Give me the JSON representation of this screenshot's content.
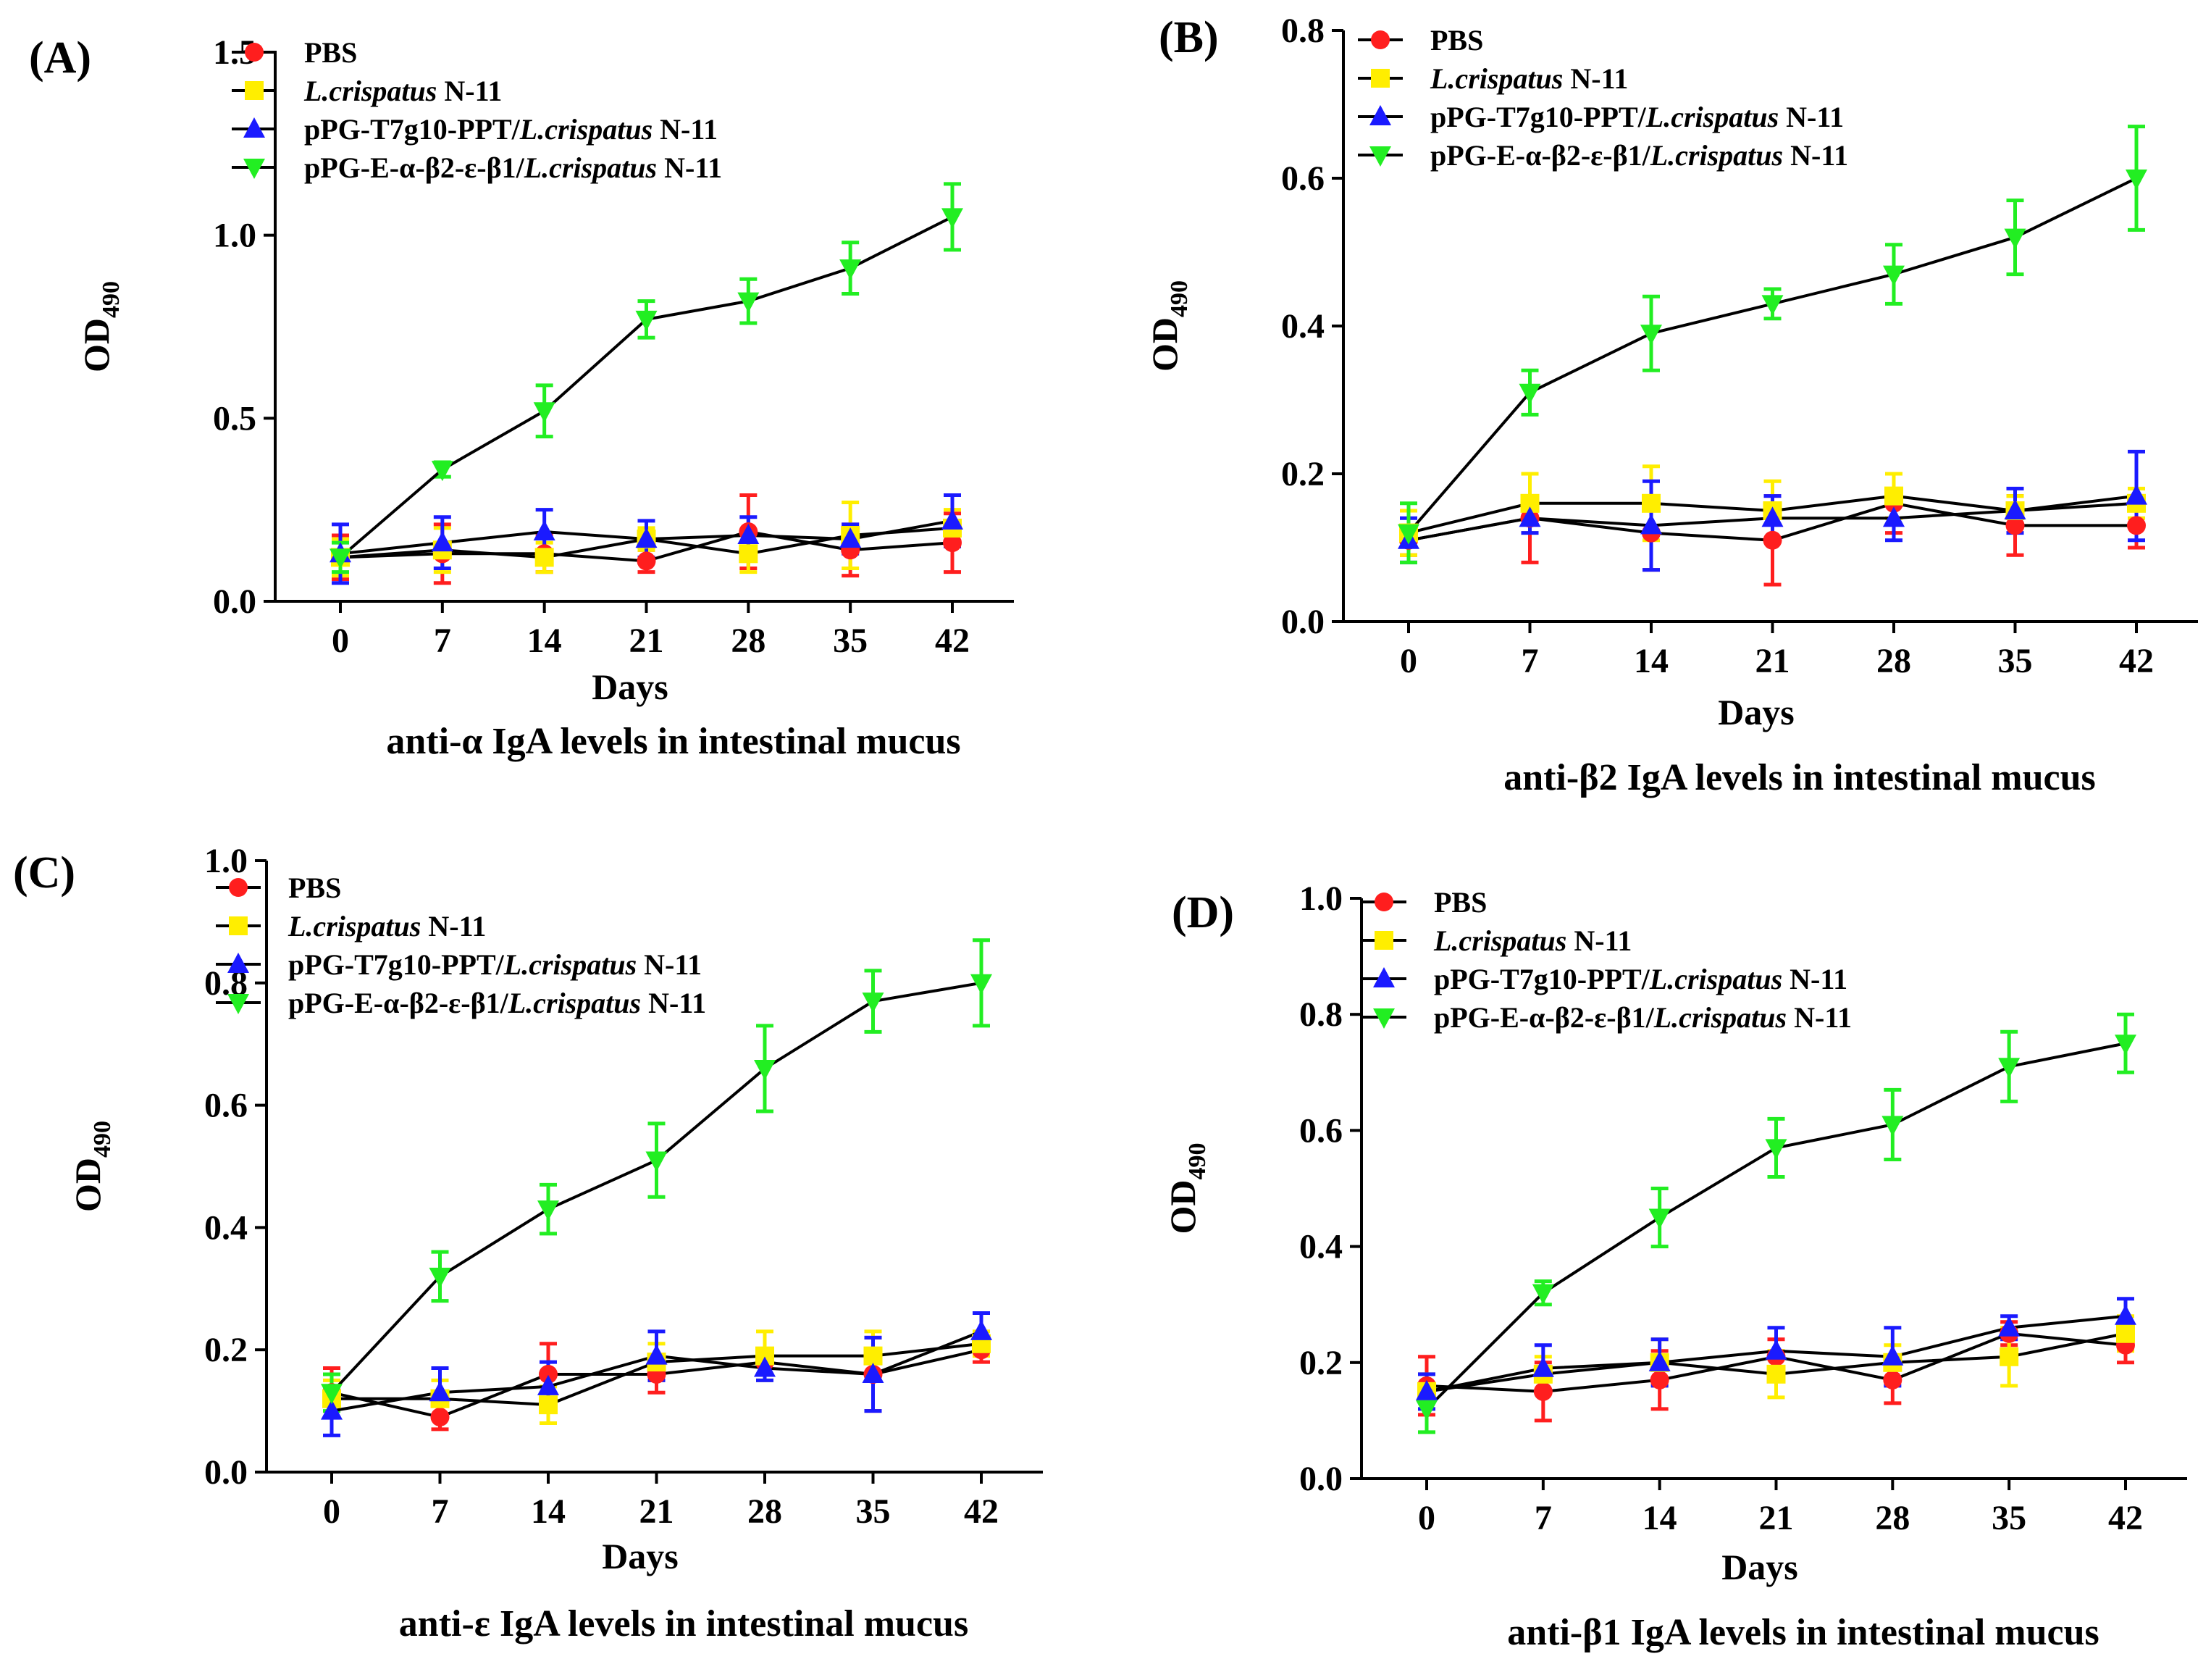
{
  "figure": {
    "series_legend": [
      {
        "key": "pbs",
        "parts": [
          {
            "text": "PBS",
            "italic": false
          }
        ]
      },
      {
        "key": "lc",
        "parts": [
          {
            "text": "L.crispatus",
            "italic": true
          },
          {
            "text": " N-11",
            "italic": false
          }
        ]
      },
      {
        "key": "t7",
        "parts": [
          {
            "text": "pPG-T7g10-PPT/",
            "italic": false
          },
          {
            "text": "L.crispatus",
            "italic": true
          },
          {
            "text": " N-11",
            "italic": false
          }
        ]
      },
      {
        "key": "eab",
        "parts": [
          {
            "text": "pPG-E-α-β2-ε-β1/",
            "italic": false
          },
          {
            "text": "L.crispatus",
            "italic": true
          },
          {
            "text": " N-11",
            "italic": false
          }
        ]
      }
    ],
    "series_style": {
      "pbs": {
        "color": "#ff1e1e",
        "marker": "circle"
      },
      "lc": {
        "color": "#ffee00",
        "marker": "square"
      },
      "t7": {
        "color": "#1a1aff",
        "marker": "triangle-up"
      },
      "eab": {
        "color": "#22ee22",
        "marker": "triangle-down"
      }
    },
    "line_color": "#000000"
  },
  "chart_data": [
    {
      "panel": "(A)",
      "type": "line",
      "title": "anti-α IgA levels in intestinal mucus",
      "xlabel": "Days",
      "ylabel": "OD490",
      "ylabel_main": "OD",
      "ylabel_sub": "490",
      "categories": [
        "0",
        "7",
        "14",
        "21",
        "28",
        "35",
        "42"
      ],
      "ylim": [
        0,
        1.5
      ],
      "yticks": [
        0,
        0.5,
        1.0,
        1.5
      ],
      "ytick_labels": [
        "0.0",
        "0.5",
        "1.0",
        "1.5"
      ],
      "series": [
        {
          "key": "pbs",
          "name": "PBS",
          "values": [
            0.12,
            0.13,
            0.13,
            0.11,
            0.19,
            0.14,
            0.16
          ],
          "errors": [
            0.06,
            0.08,
            0.05,
            0.03,
            0.1,
            0.07,
            0.08
          ]
        },
        {
          "key": "lc",
          "name": "L.crispatus N-11",
          "values": [
            0.12,
            0.14,
            0.12,
            0.17,
            0.13,
            0.18,
            0.2
          ],
          "errors": [
            0.05,
            0.06,
            0.04,
            0.03,
            0.05,
            0.09,
            0.05
          ]
        },
        {
          "key": "t7",
          "name": "pPG-T7g10-PPT/L.crispatus N-11",
          "values": [
            0.13,
            0.16,
            0.19,
            0.17,
            0.18,
            0.17,
            0.22
          ],
          "errors": [
            0.08,
            0.07,
            0.06,
            0.05,
            0.05,
            0.04,
            0.07
          ]
        },
        {
          "key": "eab",
          "name": "pPG-E-α-β2-ε-β1/L.crispatus N-11",
          "values": [
            0.12,
            0.36,
            0.52,
            0.77,
            0.82,
            0.91,
            1.05
          ],
          "errors": [
            0.04,
            0.02,
            0.07,
            0.05,
            0.06,
            0.07,
            0.09
          ]
        }
      ]
    },
    {
      "panel": "(B)",
      "type": "line",
      "title": "anti-β2 IgA levels in intestinal mucus",
      "xlabel": "Days",
      "ylabel": "OD490",
      "ylabel_main": "OD",
      "ylabel_sub": "490",
      "categories": [
        "0",
        "7",
        "14",
        "21",
        "28",
        "35",
        "42"
      ],
      "ylim": [
        0,
        0.8
      ],
      "yticks": [
        0,
        0.2,
        0.4,
        0.6,
        0.8
      ],
      "ytick_labels": [
        "0.0",
        "0.2",
        "0.4",
        "0.6",
        "0.8"
      ],
      "series": [
        {
          "key": "pbs",
          "name": "PBS",
          "values": [
            0.11,
            0.14,
            0.12,
            0.11,
            0.16,
            0.13,
            0.13
          ],
          "errors": [
            0.02,
            0.06,
            0.05,
            0.06,
            0.04,
            0.04,
            0.03
          ]
        },
        {
          "key": "lc",
          "name": "L.crispatus N-11",
          "values": [
            0.12,
            0.16,
            0.16,
            0.15,
            0.17,
            0.15,
            0.16
          ],
          "errors": [
            0.03,
            0.04,
            0.05,
            0.04,
            0.03,
            0.02,
            0.02
          ]
        },
        {
          "key": "t7",
          "name": "pPG-T7g10-PPT/L.crispatus N-11",
          "values": [
            0.11,
            0.14,
            0.13,
            0.14,
            0.14,
            0.15,
            0.17
          ],
          "errors": [
            0.03,
            0.02,
            0.06,
            0.03,
            0.03,
            0.03,
            0.06
          ]
        },
        {
          "key": "eab",
          "name": "pPG-E-α-β2-ε-β1/L.crispatus N-11",
          "values": [
            0.12,
            0.31,
            0.39,
            0.43,
            0.47,
            0.52,
            0.6
          ],
          "errors": [
            0.04,
            0.03,
            0.05,
            0.02,
            0.04,
            0.05,
            0.07
          ]
        }
      ]
    },
    {
      "panel": "(C)",
      "type": "line",
      "title": "anti-ε IgA levels in intestinal mucus",
      "xlabel": "Days",
      "ylabel": "OD490",
      "ylabel_main": "OD",
      "ylabel_sub": "490",
      "categories": [
        "0",
        "7",
        "14",
        "21",
        "28",
        "35",
        "42"
      ],
      "ylim": [
        0,
        1.0
      ],
      "yticks": [
        0,
        0.2,
        0.4,
        0.6,
        0.8,
        1.0
      ],
      "ytick_labels": [
        "0.0",
        "0.2",
        "0.4",
        "0.6",
        "0.8",
        "1.0"
      ],
      "series": [
        {
          "key": "pbs",
          "name": "PBS",
          "values": [
            0.13,
            0.09,
            0.16,
            0.16,
            0.18,
            0.16,
            0.2
          ],
          "errors": [
            0.04,
            0.02,
            0.05,
            0.03,
            0.02,
            0.06,
            0.02
          ]
        },
        {
          "key": "lc",
          "name": "L.crispatus N-11",
          "values": [
            0.12,
            0.12,
            0.11,
            0.18,
            0.19,
            0.19,
            0.21
          ],
          "errors": [
            0.03,
            0.03,
            0.03,
            0.03,
            0.04,
            0.04,
            0.02
          ]
        },
        {
          "key": "t7",
          "name": "pPG-T7g10-PPT/L.crispatus N-11",
          "values": [
            0.1,
            0.13,
            0.14,
            0.19,
            0.17,
            0.16,
            0.23
          ],
          "errors": [
            0.04,
            0.04,
            0.04,
            0.04,
            0.02,
            0.06,
            0.03
          ]
        },
        {
          "key": "eab",
          "name": "pPG-E-α-β2-ε-β1/L.crispatus N-11",
          "values": [
            0.13,
            0.32,
            0.43,
            0.51,
            0.66,
            0.77,
            0.8
          ],
          "errors": [
            0.03,
            0.04,
            0.04,
            0.06,
            0.07,
            0.05,
            0.07
          ]
        }
      ]
    },
    {
      "panel": "(D)",
      "type": "line",
      "title": "anti-β1 IgA levels in intestinal mucus",
      "xlabel": "Days",
      "ylabel": "OD490",
      "ylabel_main": "OD",
      "ylabel_sub": "490",
      "categories": [
        "0",
        "7",
        "14",
        "21",
        "28",
        "35",
        "42"
      ],
      "ylim": [
        0,
        1.0
      ],
      "yticks": [
        0,
        0.2,
        0.4,
        0.6,
        0.8,
        1.0
      ],
      "ytick_labels": [
        "0.0",
        "0.2",
        "0.4",
        "0.6",
        "0.8",
        "1.0"
      ],
      "series": [
        {
          "key": "pbs",
          "name": "PBS",
          "values": [
            0.16,
            0.15,
            0.17,
            0.21,
            0.17,
            0.25,
            0.23
          ],
          "errors": [
            0.05,
            0.05,
            0.05,
            0.03,
            0.04,
            0.02,
            0.03
          ]
        },
        {
          "key": "lc",
          "name": "L.crispatus N-11",
          "values": [
            0.15,
            0.18,
            0.2,
            0.18,
            0.2,
            0.21,
            0.25
          ],
          "errors": [
            0.03,
            0.03,
            0.04,
            0.04,
            0.03,
            0.05,
            0.03
          ]
        },
        {
          "key": "t7",
          "name": "pPG-T7g10-PPT/L.crispatus N-11",
          "values": [
            0.15,
            0.19,
            0.2,
            0.22,
            0.21,
            0.26,
            0.28
          ],
          "errors": [
            0.03,
            0.04,
            0.04,
            0.04,
            0.05,
            0.02,
            0.03
          ]
        },
        {
          "key": "eab",
          "name": "pPG-E-α-β2-ε-β1/L.crispatus N-11",
          "values": [
            0.12,
            0.32,
            0.45,
            0.57,
            0.61,
            0.71,
            0.75
          ],
          "errors": [
            0.04,
            0.02,
            0.05,
            0.05,
            0.06,
            0.06,
            0.05
          ]
        }
      ]
    }
  ]
}
